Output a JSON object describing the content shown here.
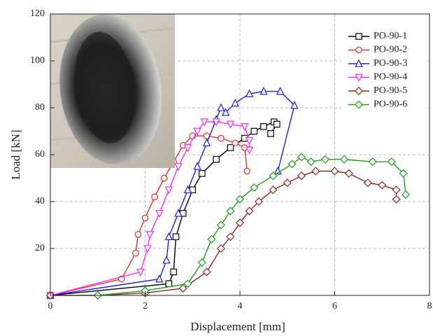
{
  "chart_data": {
    "type": "line",
    "x_label": "Displacement [mm]",
    "y_label": "Load [kN]",
    "xlim": [
      0,
      8
    ],
    "xticks": [
      0,
      2,
      4,
      6,
      8
    ],
    "ylim": [
      0,
      120
    ],
    "yticks": [
      20,
      40,
      60,
      80,
      100,
      120
    ],
    "grid": true,
    "legend": "upper right",
    "series": [
      {
        "name": "PO-90-1",
        "color": "#000000",
        "marker": "square",
        "x": [
          0,
          2.5,
          2.6,
          2.65,
          2.8,
          3.0,
          3.2,
          3.5,
          3.8,
          4.1,
          4.3,
          4.5,
          4.72,
          4.78,
          4.65
        ],
        "values": [
          0,
          5,
          10,
          25,
          35,
          45,
          52,
          58,
          63,
          67,
          70,
          72,
          74,
          73,
          69
        ]
      },
      {
        "name": "PO-90-2",
        "color": "#e8302a",
        "marker": "circle",
        "x": [
          0,
          1.5,
          1.8,
          1.85,
          2.0,
          2.2,
          2.4,
          2.6,
          2.8,
          3.0,
          3.3,
          3.6,
          3.9,
          4.1,
          4.15
        ],
        "values": [
          0,
          7,
          18,
          26,
          33,
          42,
          50,
          57,
          64,
          68,
          68,
          67,
          65,
          63,
          53
        ]
      },
      {
        "name": "PO-90-3",
        "color": "#1f1fe0",
        "marker": "triangle-up",
        "x": [
          0,
          2.3,
          2.45,
          2.5,
          2.7,
          2.9,
          3.1,
          3.3,
          3.5,
          3.6,
          3.7,
          3.9,
          4.2,
          4.5,
          4.85,
          5.15,
          4.8
        ],
        "values": [
          0,
          7,
          15,
          25,
          35,
          45,
          55,
          65,
          75,
          80,
          78,
          82,
          86,
          87,
          87,
          81,
          53
        ]
      },
      {
        "name": "PO-90-4",
        "color": "#ff2bff",
        "marker": "triangle-down",
        "x": [
          0,
          1.9,
          2.05,
          2.1,
          2.3,
          2.5,
          2.7,
          2.9,
          3.1,
          3.25,
          3.5,
          3.8,
          4.1,
          4.2,
          4.2
        ],
        "values": [
          0,
          10,
          20,
          26,
          35,
          45,
          55,
          63,
          70,
          74,
          74,
          73,
          72,
          66,
          62
        ]
      },
      {
        "name": "PO-90-5",
        "color": "#8b2a1e",
        "marker": "diamond",
        "x": [
          0,
          1,
          2,
          2.8,
          3.3,
          3.6,
          3.8,
          4.0,
          4.2,
          4.4,
          4.7,
          5.0,
          5.3,
          5.6,
          6.0,
          6.3,
          6.7,
          7.0,
          7.3,
          7.3
        ],
        "values": [
          0,
          0,
          1,
          3,
          10,
          20,
          25,
          31,
          36,
          40,
          45,
          48,
          51,
          53,
          53,
          52,
          48,
          47,
          45,
          41
        ]
      },
      {
        "name": "PO-90-6",
        "color": "#1e9e1e",
        "marker": "diamond",
        "x": [
          1,
          2,
          2.9,
          3.2,
          3.4,
          3.6,
          3.8,
          4.0,
          4.3,
          4.7,
          5.1,
          5.3,
          5.5,
          5.8,
          6.2,
          6.8,
          7.2,
          7.45,
          7.5
        ],
        "values": [
          0,
          2,
          5,
          14,
          24,
          30,
          36,
          41,
          46,
          51,
          56,
          59,
          57,
          58,
          58,
          57,
          57,
          52,
          43
        ]
      }
    ]
  }
}
